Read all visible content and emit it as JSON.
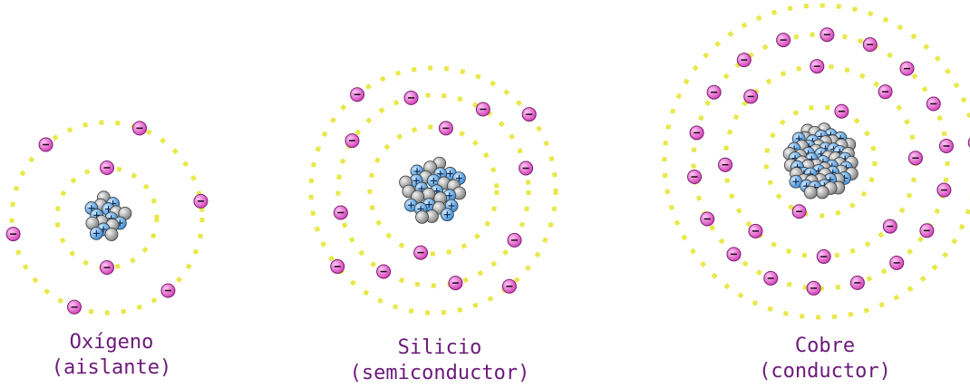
{
  "colors": {
    "orbit": "#e8e84a",
    "electron_fill": "#e055c8",
    "electron_stroke": "#7a1f6e",
    "proton_fill": "#4aa3ea",
    "neutron_fill": "#a8a8a8",
    "caption": "#6b1a7a"
  },
  "atoms": [
    {
      "name": "Oxígeno",
      "kind": "(aislante)",
      "shells": [
        2,
        6
      ],
      "nucleus": {
        "protons": 8,
        "neutrons": 8
      }
    },
    {
      "name": "Silicio",
      "kind": "(semiconductor)",
      "shells": [
        2,
        8,
        4
      ],
      "nucleus": {
        "protons": 14,
        "neutrons": 14
      }
    },
    {
      "name": "Cobre",
      "kind": "(conductor)",
      "shells": [
        2,
        8,
        18,
        1
      ],
      "nucleus": {
        "protons": 29,
        "neutrons": 35
      }
    }
  ]
}
